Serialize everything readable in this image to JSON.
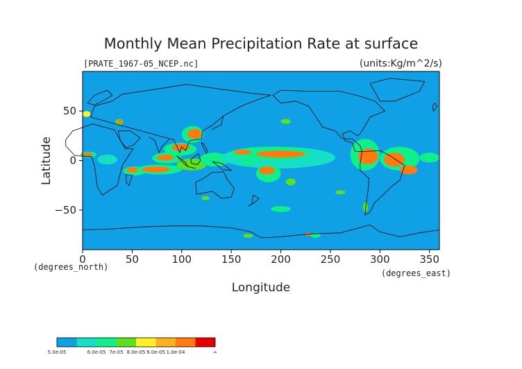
{
  "chart_data": {
    "type": "heatmap",
    "title": "Monthly Mean Precipitation Rate at surface",
    "source_file": "[PRATE_1967-05_NCEP.nc]",
    "units": "(units:Kg/m^2/s)",
    "xlabel": "Longitude",
    "ylabel": "Latitude",
    "x_unit_note": "(degrees_east)",
    "y_unit_note": "(degrees_north)",
    "xlim": [
      0,
      360
    ],
    "ylim": [
      -90,
      90
    ],
    "x_ticks": [
      "0",
      "50",
      "100",
      "150",
      "200",
      "250",
      "300",
      "350"
    ],
    "y_ticks": [
      "50",
      "0",
      "−50"
    ],
    "x_tick_values": [
      0,
      50,
      100,
      150,
      200,
      250,
      300,
      350
    ],
    "y_tick_values": [
      50,
      0,
      -50
    ],
    "background_color": "#0fa0e6",
    "colorbar": {
      "colors": [
        "#0fa0e6",
        "#13e0c5",
        "#10f08a",
        "#5de020",
        "#fff028",
        "#ffb020",
        "#ff7a10",
        "#e60000"
      ],
      "labels": [
        "5.0e-05",
        "6.0e-05",
        "7e-05",
        "8.0e-05",
        "9.0e-05",
        "1.0e-04",
        "∞"
      ],
      "label_positions": [
        0,
        2,
        3,
        4,
        5,
        6,
        8
      ]
    },
    "regions": [
      {
        "level": 2,
        "lon": [
          -2,
          14
        ],
        "lat": [
          3,
          9
        ]
      },
      {
        "level": 6,
        "lon": [
          0,
          10
        ],
        "lat": [
          4,
          8
        ]
      },
      {
        "level": 1,
        "lon": [
          15,
          35
        ],
        "lat": [
          -4,
          6
        ]
      },
      {
        "level": 3,
        "lon": [
          33,
          41
        ],
        "lat": [
          36,
          42
        ]
      },
      {
        "level": 6,
        "lon": [
          35,
          40
        ],
        "lat": [
          37,
          41
        ]
      },
      {
        "level": 4,
        "lon": [
          0,
          8
        ],
        "lat": [
          44,
          50
        ]
      },
      {
        "level": 2,
        "lon": [
          41,
          64
        ],
        "lat": [
          -15,
          -6
        ]
      },
      {
        "level": 6,
        "lon": [
          44,
          58
        ],
        "lat": [
          -12,
          -7
        ]
      },
      {
        "level": 2,
        "lon": [
          55,
          100
        ],
        "lat": [
          -14,
          -4
        ]
      },
      {
        "level": 6,
        "lon": [
          60,
          88
        ],
        "lat": [
          -12,
          -6
        ]
      },
      {
        "level": 2,
        "lon": [
          70,
          100
        ],
        "lat": [
          -3,
          8
        ]
      },
      {
        "level": 6,
        "lon": [
          75,
          92
        ],
        "lat": [
          0,
          6
        ]
      },
      {
        "level": 2,
        "lon": [
          82,
          115
        ],
        "lat": [
          5,
          18
        ]
      },
      {
        "level": 6,
        "lon": [
          90,
          108
        ],
        "lat": [
          10,
          17
        ]
      },
      {
        "level": 2,
        "lon": [
          100,
          122
        ],
        "lat": [
          18,
          35
        ]
      },
      {
        "level": 6,
        "lon": [
          106,
          120
        ],
        "lat": [
          22,
          32
        ]
      },
      {
        "level": 3,
        "lon": [
          95,
          125
        ],
        "lat": [
          -10,
          2
        ]
      },
      {
        "level": 2,
        "lon": [
          118,
          148
        ],
        "lat": [
          -6,
          8
        ]
      },
      {
        "level": 1,
        "lon": [
          140,
          255
        ],
        "lat": [
          -8,
          14
        ]
      },
      {
        "level": 2,
        "lon": [
          148,
          230
        ],
        "lat": [
          0,
          14
        ]
      },
      {
        "level": 6,
        "lon": [
          153,
          170
        ],
        "lat": [
          6,
          11
        ]
      },
      {
        "level": 6,
        "lon": [
          175,
          225
        ],
        "lat": [
          3,
          10
        ]
      },
      {
        "level": 2,
        "lon": [
          175,
          200
        ],
        "lat": [
          -22,
          -4
        ]
      },
      {
        "level": 6,
        "lon": [
          178,
          194
        ],
        "lat": [
          -14,
          -6
        ]
      },
      {
        "level": 3,
        "lon": [
          205,
          215
        ],
        "lat": [
          -25,
          -18
        ]
      },
      {
        "level": 2,
        "lon": [
          158,
          175
        ],
        "lat": [
          -5,
          0
        ]
      },
      {
        "level": 3,
        "lon": [
          200,
          210
        ],
        "lat": [
          37,
          42
        ]
      },
      {
        "level": 2,
        "lon": [
          270,
          300
        ],
        "lat": [
          -10,
          22
        ]
      },
      {
        "level": 6,
        "lon": [
          278,
          298
        ],
        "lat": [
          -4,
          12
        ]
      },
      {
        "level": 2,
        "lon": [
          300,
          340
        ],
        "lat": [
          -10,
          14
        ]
      },
      {
        "level": 6,
        "lon": [
          304,
          325
        ],
        "lat": [
          -6,
          8
        ]
      },
      {
        "level": 6,
        "lon": [
          320,
          338
        ],
        "lat": [
          -14,
          -5
        ]
      },
      {
        "level": 2,
        "lon": [
          340,
          360
        ],
        "lat": [
          -2,
          8
        ]
      },
      {
        "level": 3,
        "lon": [
          120,
          128
        ],
        "lat": [
          -40,
          -36
        ]
      },
      {
        "level": 2,
        "lon": [
          190,
          210
        ],
        "lat": [
          -52,
          -46
        ]
      },
      {
        "level": 3,
        "lon": [
          255,
          265
        ],
        "lat": [
          -34,
          -30
        ]
      },
      {
        "level": 3,
        "lon": [
          283,
          288
        ],
        "lat": [
          -52,
          -42
        ]
      },
      {
        "level": 2,
        "lon": [
          230,
          240
        ],
        "lat": [
          -78,
          -73
        ]
      },
      {
        "level": 6,
        "lon": [
          224,
          232
        ],
        "lat": [
          -76,
          -73
        ]
      },
      {
        "level": 3,
        "lon": [
          162,
          172
        ],
        "lat": [
          -78,
          -74
        ]
      }
    ]
  }
}
